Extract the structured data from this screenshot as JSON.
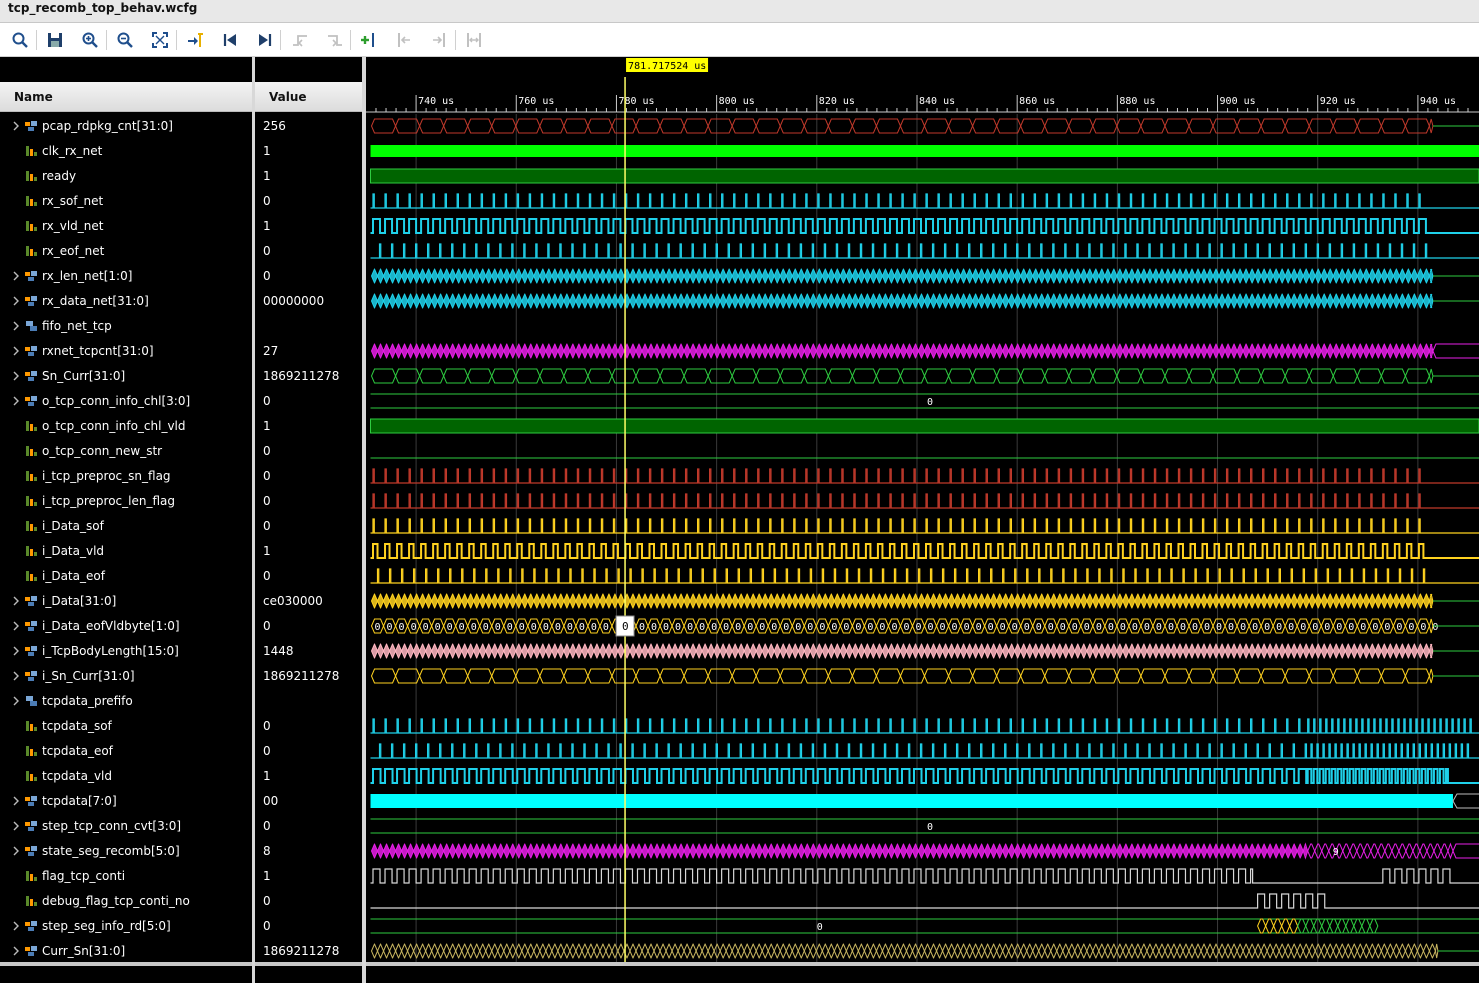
{
  "window": {
    "title": "tcp_recomb_top_behav.wcfg"
  },
  "toolbar": {
    "buttons": [
      {
        "name": "search-icon",
        "enabled": true
      },
      {
        "name": "save-icon",
        "enabled": true
      },
      {
        "name": "zoom-in-icon",
        "enabled": true
      },
      {
        "name": "zoom-out-icon",
        "enabled": true
      },
      {
        "name": "zoom-fit-icon",
        "enabled": true
      },
      {
        "name": "go-to-cursor-icon",
        "enabled": true
      },
      {
        "name": "go-to-start-icon",
        "enabled": true
      },
      {
        "name": "go-to-end-icon",
        "enabled": true
      },
      {
        "name": "previous-transition-icon",
        "enabled": false
      },
      {
        "name": "next-transition-icon",
        "enabled": false
      },
      {
        "name": "add-marker-icon",
        "enabled": true
      },
      {
        "name": "previous-marker-icon",
        "enabled": false
      },
      {
        "name": "next-marker-icon",
        "enabled": false
      },
      {
        "name": "swap-cursors-icon",
        "enabled": false
      }
    ]
  },
  "columns": {
    "name": "Name",
    "value": "Value"
  },
  "cursor": {
    "label": "781.717524 us",
    "time_us": 781.717524
  },
  "timeline": {
    "start_us": 730.8,
    "end_us": 951.2,
    "tick_labels": [
      "740 us",
      "760 us",
      "780 us",
      "800 us",
      "820 us",
      "840 us",
      "860 us",
      "880 us",
      "900 us",
      "920 us",
      "940 us"
    ],
    "tick_values_us": [
      740,
      760,
      780,
      800,
      820,
      840,
      860,
      880,
      900,
      920,
      940
    ]
  },
  "signals": [
    {
      "name": "pcap_rdpkg_cnt[31:0]",
      "value": "256",
      "kind": "bus",
      "expandable": true,
      "color": "#c0392b",
      "period_us": 4.8,
      "end_us": 943
    },
    {
      "name": "clk_rx_net",
      "value": "1",
      "kind": "clock",
      "expandable": false,
      "color": "#00ff00"
    },
    {
      "name": "ready",
      "value": "1",
      "kind": "high",
      "expandable": false,
      "color": "#006400"
    },
    {
      "name": "rx_sof_net",
      "value": "0",
      "kind": "pulse",
      "expandable": false,
      "color": "#1fd1ea",
      "period_us": 2.4,
      "width_us": 0.25,
      "end_us": 942
    },
    {
      "name": "rx_vld_net",
      "value": "1",
      "kind": "pulse",
      "expandable": false,
      "color": "#1fd1ea",
      "period_us": 2.4,
      "width_us": 1.4,
      "end_us": 942
    },
    {
      "name": "rx_eof_net",
      "value": "0",
      "kind": "pulse",
      "expandable": false,
      "color": "#1fd1ea",
      "period_us": 2.4,
      "width_us": 0.25,
      "offset_us": 1.3,
      "end_us": 942
    },
    {
      "name": "rx_len_net[1:0]",
      "value": "0",
      "kind": "bus",
      "expandable": true,
      "color": "#1fd1ea",
      "period_us": 1.2,
      "end_us": 943
    },
    {
      "name": "rx_data_net[31:0]",
      "value": "00000000",
      "kind": "bus",
      "expandable": true,
      "color": "#1fd1ea",
      "period_us": 1.2,
      "end_us": 943
    },
    {
      "name": "fifo_net_tcp",
      "value": "",
      "kind": "empty",
      "expandable": true,
      "color": "#000000"
    },
    {
      "name": "rxnet_tcpcnt[31:0]",
      "value": "27",
      "kind": "bus",
      "expandable": true,
      "color": "#e61fe6",
      "period_us": 1.2,
      "end_us": 943,
      "tail": "#e61fe6"
    },
    {
      "name": "Sn_Curr[31:0]",
      "value": "1869211278",
      "kind": "bus",
      "expandable": true,
      "color": "#2ecc40",
      "period_us": 4.8,
      "end_us": 943
    },
    {
      "name": "o_tcp_conn_info_chl[3:0]",
      "value": "0",
      "kind": "constbus",
      "expandable": true,
      "color": "#2ecc40",
      "label": "0"
    },
    {
      "name": "o_tcp_conn_info_chl_vld",
      "value": "1",
      "kind": "high",
      "expandable": false,
      "color": "#006400"
    },
    {
      "name": "o_tcp_conn_new_str",
      "value": "0",
      "kind": "low",
      "expandable": false,
      "color": "#2ecc40"
    },
    {
      "name": "i_tcp_preproc_sn_flag",
      "value": "0",
      "kind": "pulse",
      "expandable": false,
      "color": "#c0392b",
      "period_us": 2.4,
      "width_us": 0.25,
      "end_us": 942
    },
    {
      "name": "i_tcp_preproc_len_flag",
      "value": "0",
      "kind": "pulse",
      "expandable": false,
      "color": "#c0392b",
      "period_us": 2.4,
      "width_us": 0.25,
      "end_us": 942
    },
    {
      "name": "i_Data_sof",
      "value": "0",
      "kind": "pulse",
      "expandable": false,
      "color": "#ffd21f",
      "period_us": 2.4,
      "width_us": 0.25,
      "end_us": 942
    },
    {
      "name": "i_Data_vld",
      "value": "1",
      "kind": "pulse",
      "expandable": false,
      "color": "#ffd21f",
      "period_us": 2.4,
      "width_us": 0.9,
      "end_us": 942
    },
    {
      "name": "i_Data_eof",
      "value": "0",
      "kind": "pulse",
      "expandable": false,
      "color": "#ffd21f",
      "period_us": 2.4,
      "width_us": 0.25,
      "offset_us": 0.9,
      "end_us": 942
    },
    {
      "name": "i_Data[31:0]",
      "value": "ce030000",
      "kind": "bus",
      "expandable": true,
      "color": "#ffd21f",
      "period_us": 1.2,
      "end_us": 943
    },
    {
      "name": "i_Data_eofVldbyte[1:0]",
      "value": "0",
      "kind": "labelbus",
      "expandable": true,
      "color": "#ffd21f",
      "period_us": 2.4,
      "end_us": 943,
      "label": "0"
    },
    {
      "name": "i_TcpBodyLength[15:0]",
      "value": "1448",
      "kind": "bus",
      "expandable": true,
      "color": "#ffb6c1",
      "period_us": 1.2,
      "end_us": 943
    },
    {
      "name": "i_Sn_Curr[31:0]",
      "value": "1869211278",
      "kind": "bus",
      "expandable": true,
      "color": "#ffd21f",
      "period_us": 4.8,
      "end_us": 943
    },
    {
      "name": "tcpdata_prefifo",
      "value": "",
      "kind": "empty",
      "expandable": true,
      "color": "#000000"
    },
    {
      "name": "tcpdata_sof",
      "value": "0",
      "kind": "pulse",
      "expandable": false,
      "color": "#1fd1ea",
      "period_us": 2.4,
      "width_us": 0.25,
      "end_us": 951,
      "fast_from_us": 918,
      "fast_period_us": 1.2
    },
    {
      "name": "tcpdata_eof",
      "value": "0",
      "kind": "pulse",
      "expandable": false,
      "color": "#1fd1ea",
      "period_us": 2.4,
      "width_us": 0.25,
      "offset_us": 1.3,
      "end_us": 951,
      "fast_from_us": 918,
      "fast_period_us": 1.2
    },
    {
      "name": "tcpdata_vld",
      "value": "1",
      "kind": "pulse",
      "expandable": false,
      "color": "#1fd1ea",
      "period_us": 2.4,
      "width_us": 1.5,
      "end_us": 946,
      "fast_from_us": 918,
      "fast_period_us": 1.2
    },
    {
      "name": "tcpdata[7:0]",
      "value": "00",
      "kind": "solidbus",
      "expandable": true,
      "color": "#00ffff",
      "end_us": 947
    },
    {
      "name": "step_tcp_conn_cvt[3:0]",
      "value": "0",
      "kind": "constbus",
      "expandable": true,
      "color": "#2ecc40",
      "label": "0"
    },
    {
      "name": "state_seg_recomb[5:0]",
      "value": "8",
      "kind": "bus",
      "expandable": true,
      "color": "#e61fe6",
      "period_us": 1.2,
      "end_us": 918,
      "tail": "#e61fe6",
      "slow_to_us": 947,
      "label": "9"
    },
    {
      "name": "flag_tcp_conti",
      "value": "1",
      "kind": "pulse",
      "expandable": false,
      "color": "#d8d8d8",
      "period_us": 2.4,
      "width_us": 1.4,
      "end_us": 907,
      "resume_from_us": 933,
      "resume_to_us": 947
    },
    {
      "name": "debug_flag_tcp_conti_no",
      "value": "0",
      "kind": "window",
      "expandable": false,
      "color": "#d8d8d8",
      "from_us": 908,
      "to_us": 922,
      "period_us": 2.4
    },
    {
      "name": "step_seg_info_rd[5:0]",
      "value": "0",
      "kind": "constbus",
      "expandable": true,
      "color": "#2ecc40",
      "label": "0",
      "burst_from_us": 908,
      "burst_to_us": 932
    },
    {
      "name": "Curr_Sn[31:0]",
      "value": "1869211278",
      "kind": "bus",
      "expandable": true,
      "color": "#c8b560",
      "period_us": 1.2,
      "end_us": 944
    }
  ]
}
